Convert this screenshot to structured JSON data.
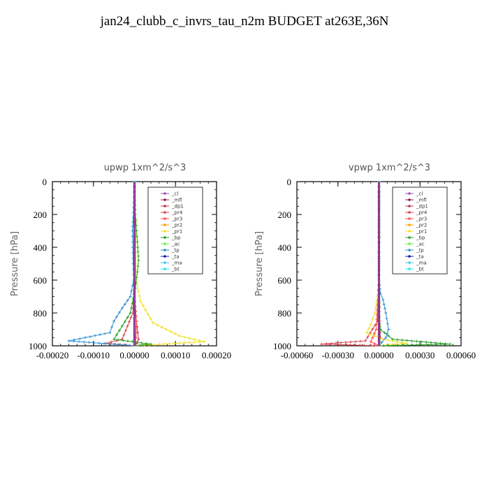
{
  "page": {
    "title": "jan24_clubb_c_invrs_tau_n2m  BUDGET at263E,36N"
  },
  "legend_entries": [
    "_cl",
    "_mfl",
    "_dp1",
    "_pr4",
    "_pr3",
    "_pr2",
    "_pr1",
    "_bp",
    "_ac",
    "_tp",
    "_ta",
    "_ma",
    "_bt"
  ],
  "legend_colors": [
    "#9a4fbf",
    "#8b1c4a",
    "#c0304a",
    "#d8404a",
    "#ff4b4b",
    "#ffa000",
    "#f0e020",
    "#22a022",
    "#66ee44",
    "#2a8fd0",
    "#1818a8",
    "#44c8e8",
    "#22e8e8"
  ],
  "chart_data": [
    {
      "type": "line",
      "title": "upwp   1xm^2/s^3",
      "ylabel": "Pressure [hPa]",
      "xlim": [
        -0.0002,
        0.0002
      ],
      "ylim": [
        1000,
        0
      ],
      "xticks": [
        "-0.00020",
        "-0.00010",
        "0.00000",
        "0.00010",
        "0.00020"
      ],
      "yticks": [
        "0",
        "200",
        "400",
        "600",
        "800",
        "1000"
      ],
      "legend_position": "top-right",
      "series": [
        {
          "name": "_cl",
          "x": [
            0,
            0,
            0,
            0,
            0,
            0,
            0,
            0,
            0,
            0,
            0
          ],
          "y": [
            0,
            100,
            200,
            300,
            400,
            500,
            600,
            700,
            800,
            900,
            1000
          ]
        },
        {
          "name": "_mfl",
          "x": [
            0,
            0,
            0,
            0,
            0,
            0,
            0,
            0,
            0,
            0,
            0
          ],
          "y": [
            0,
            100,
            200,
            300,
            400,
            500,
            600,
            700,
            800,
            900,
            1000
          ]
        },
        {
          "name": "_dp1",
          "x": [
            0,
            0,
            0,
            0,
            0,
            0,
            0,
            0,
            5e-06,
            8e-06,
            1e-05,
            6e-06,
            0
          ],
          "y": [
            0,
            100,
            200,
            300,
            400,
            500,
            600,
            700,
            850,
            920,
            960,
            985,
            1000
          ]
        },
        {
          "name": "_pr4",
          "x": [
            0,
            0,
            0,
            0,
            0,
            0,
            0,
            -4e-06,
            -3e-05,
            -7e-05,
            0
          ],
          "y": [
            0,
            100,
            200,
            300,
            400,
            500,
            600,
            800,
            960,
            985,
            1000
          ]
        },
        {
          "name": "_pr3",
          "x": [
            0,
            0,
            0,
            0,
            0,
            0,
            0,
            0,
            5e-06,
            4e-06,
            0
          ],
          "y": [
            0,
            100,
            200,
            300,
            400,
            500,
            600,
            700,
            850,
            950,
            1000
          ]
        },
        {
          "name": "_pr2",
          "x": [
            0,
            0,
            0,
            0,
            0,
            0,
            0,
            0,
            0,
            0,
            0
          ],
          "y": [
            0,
            100,
            200,
            300,
            400,
            500,
            600,
            700,
            800,
            900,
            1000
          ]
        },
        {
          "name": "_pr1",
          "x": [
            0,
            2e-06,
            4e-06,
            4e-06,
            3e-06,
            3e-06,
            4e-06,
            1.5e-05,
            4.5e-05,
            0.00011,
            0.00017,
            0
          ],
          "y": [
            0,
            200,
            240,
            300,
            400,
            500,
            600,
            730,
            860,
            940,
            975,
            1000
          ]
        },
        {
          "name": "_bp",
          "x": [
            0,
            2e-06,
            5e-06,
            8e-06,
            1e-05,
            7e-06,
            2e-06,
            -1e-05,
            -3e-05,
            -5e-05,
            4e-05,
            0
          ],
          "y": [
            0,
            200,
            300,
            400,
            480,
            550,
            650,
            800,
            880,
            960,
            990,
            1000
          ]
        },
        {
          "name": "_ac",
          "x": [
            0,
            0,
            0,
            0,
            0,
            0,
            0,
            0,
            0,
            0,
            0
          ],
          "y": [
            0,
            100,
            200,
            300,
            400,
            500,
            600,
            700,
            800,
            900,
            1000
          ]
        },
        {
          "name": "_tp",
          "x": [
            0,
            -3e-06,
            -5e-06,
            -4e-06,
            -3e-06,
            -2e-06,
            -1e-05,
            -3e-05,
            -5e-05,
            -6e-05,
            -0.00012,
            -0.00016,
            0
          ],
          "y": [
            0,
            220,
            300,
            400,
            500,
            600,
            700,
            770,
            850,
            920,
            950,
            970,
            1000
          ]
        },
        {
          "name": "_ta",
          "x": [
            0,
            0,
            0,
            0,
            0,
            0,
            0,
            0,
            0,
            0,
            0
          ],
          "y": [
            0,
            100,
            200,
            300,
            400,
            500,
            600,
            700,
            800,
            900,
            1000
          ]
        },
        {
          "name": "_ma",
          "x": [
            0,
            0,
            0,
            0,
            0,
            0,
            0,
            0,
            0,
            0,
            0
          ],
          "y": [
            0,
            100,
            200,
            300,
            400,
            500,
            600,
            700,
            800,
            900,
            1000
          ]
        },
        {
          "name": "_bt",
          "x": [
            0,
            0,
            0,
            0,
            0,
            0,
            0,
            0,
            0,
            0,
            0
          ],
          "y": [
            0,
            100,
            200,
            300,
            400,
            500,
            600,
            700,
            800,
            900,
            1000
          ]
        }
      ]
    },
    {
      "type": "line",
      "title": "vpwp   1xm^2/s^3",
      "ylabel": "Pressure [hPa]",
      "xlim": [
        -0.0006,
        0.0006
      ],
      "ylim": [
        1000,
        0
      ],
      "xticks": [
        "-0.00060",
        "-0.00030",
        "0.00000",
        "0.00030",
        "0.00060"
      ],
      "yticks": [
        "0",
        "200",
        "400",
        "600",
        "800",
        "1000"
      ],
      "legend_position": "top-right",
      "series": [
        {
          "name": "_cl",
          "x": [
            0,
            0,
            0,
            0,
            0,
            0,
            0,
            0,
            0,
            0,
            0
          ],
          "y": [
            0,
            100,
            200,
            300,
            400,
            500,
            600,
            700,
            800,
            900,
            1000
          ]
        },
        {
          "name": "_mfl",
          "x": [
            0,
            0,
            0,
            0,
            0,
            0,
            0,
            0,
            0,
            0,
            0
          ],
          "y": [
            0,
            100,
            200,
            300,
            400,
            500,
            600,
            700,
            800,
            900,
            1000
          ]
        },
        {
          "name": "_dp1",
          "x": [
            0,
            0,
            0,
            0,
            0,
            0,
            0,
            0,
            5e-06,
            1e-05,
            0
          ],
          "y": [
            0,
            100,
            200,
            300,
            400,
            500,
            600,
            700,
            850,
            950,
            1000
          ]
        },
        {
          "name": "_pr4",
          "x": [
            0,
            0,
            0,
            0,
            0,
            0,
            0,
            -1e-05,
            -0.0001,
            -0.00042,
            0
          ],
          "y": [
            0,
            100,
            200,
            300,
            400,
            500,
            600,
            850,
            970,
            990,
            1000
          ]
        },
        {
          "name": "_pr3",
          "x": [
            0,
            0,
            0,
            0,
            0,
            0,
            0,
            -2e-05,
            -6e-05,
            0
          ],
          "y": [
            0,
            100,
            200,
            300,
            400,
            500,
            600,
            900,
            975,
            1000
          ]
        },
        {
          "name": "_pr2",
          "x": [
            0,
            0,
            0,
            0,
            0,
            0,
            0,
            0,
            0,
            0,
            0
          ],
          "y": [
            0,
            100,
            200,
            300,
            400,
            500,
            600,
            700,
            800,
            900,
            1000
          ]
        },
        {
          "name": "_pr1",
          "x": [
            0,
            0,
            0,
            -1e-05,
            -3e-05,
            -6e-05,
            -9e-05,
            3e-05,
            0.0002,
            0
          ],
          "y": [
            0,
            400,
            600,
            700,
            800,
            870,
            920,
            960,
            985,
            1000
          ]
        },
        {
          "name": "_bp",
          "x": [
            0,
            0,
            0,
            0,
            0,
            1e-05,
            0.0001,
            0.00052,
            0
          ],
          "y": [
            0,
            200,
            400,
            600,
            800,
            900,
            960,
            990,
            1000
          ]
        },
        {
          "name": "_ac",
          "x": [
            0,
            0,
            0,
            0,
            0,
            0,
            0,
            0,
            0,
            0,
            0
          ],
          "y": [
            0,
            100,
            200,
            300,
            400,
            500,
            600,
            700,
            800,
            900,
            1000
          ]
        },
        {
          "name": "_tp",
          "x": [
            0,
            0,
            0,
            1e-05,
            3e-05,
            5e-05,
            7e-05,
            5e-05,
            2e-05,
            0
          ],
          "y": [
            0,
            400,
            600,
            680,
            720,
            800,
            900,
            950,
            980,
            1000
          ]
        },
        {
          "name": "_ta",
          "x": [
            0,
            0,
            0,
            0,
            0,
            0,
            0,
            0,
            0,
            0,
            0
          ],
          "y": [
            0,
            100,
            200,
            300,
            400,
            500,
            600,
            700,
            800,
            900,
            1000
          ]
        },
        {
          "name": "_ma",
          "x": [
            0,
            0,
            0,
            0,
            0,
            0,
            0,
            0,
            0,
            0,
            0
          ],
          "y": [
            0,
            100,
            200,
            300,
            400,
            500,
            600,
            700,
            800,
            900,
            1000
          ]
        },
        {
          "name": "_bt",
          "x": [
            0,
            0,
            0,
            0,
            0,
            0,
            0,
            0,
            0,
            0,
            0
          ],
          "y": [
            0,
            100,
            200,
            300,
            400,
            500,
            600,
            700,
            800,
            900,
            1000
          ]
        }
      ]
    }
  ]
}
